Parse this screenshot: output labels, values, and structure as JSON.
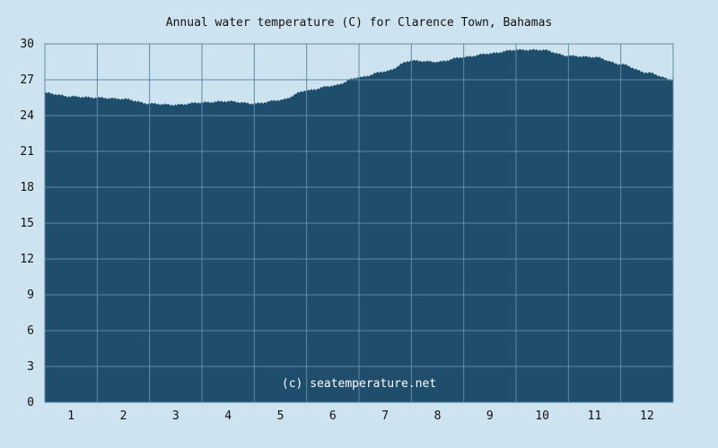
{
  "chart_data": {
    "type": "area",
    "title": "Annual water temperature (C) for Clarence Town, Bahamas",
    "xlabel": "",
    "ylabel": "",
    "categories": [
      "1",
      "2",
      "3",
      "4",
      "5",
      "6",
      "7",
      "8",
      "9",
      "10",
      "11",
      "12"
    ],
    "ylim": [
      0,
      30
    ],
    "yticks": [
      0,
      3,
      6,
      9,
      12,
      15,
      18,
      21,
      24,
      27,
      30
    ],
    "grid": true,
    "x": [
      0,
      0.5,
      1,
      1.5,
      2,
      2.5,
      3,
      3.5,
      4,
      4.5,
      5,
      5.5,
      6,
      6.5,
      7,
      7.5,
      8,
      8.5,
      9,
      9.5,
      10,
      10.5,
      11,
      11.5,
      12
    ],
    "values": [
      25.9,
      25.6,
      25.5,
      25.4,
      25.0,
      24.9,
      25.1,
      25.2,
      25.0,
      25.3,
      26.1,
      26.5,
      27.2,
      27.7,
      28.6,
      28.5,
      28.9,
      29.2,
      29.5,
      29.5,
      29.0,
      28.9,
      28.3,
      27.6,
      27.0
    ],
    "colors": {
      "fill": "#1e4e6b",
      "grid": "#5f8aa5",
      "background": "#cde3ef"
    },
    "annotation": "(c) seatemperature.net"
  }
}
